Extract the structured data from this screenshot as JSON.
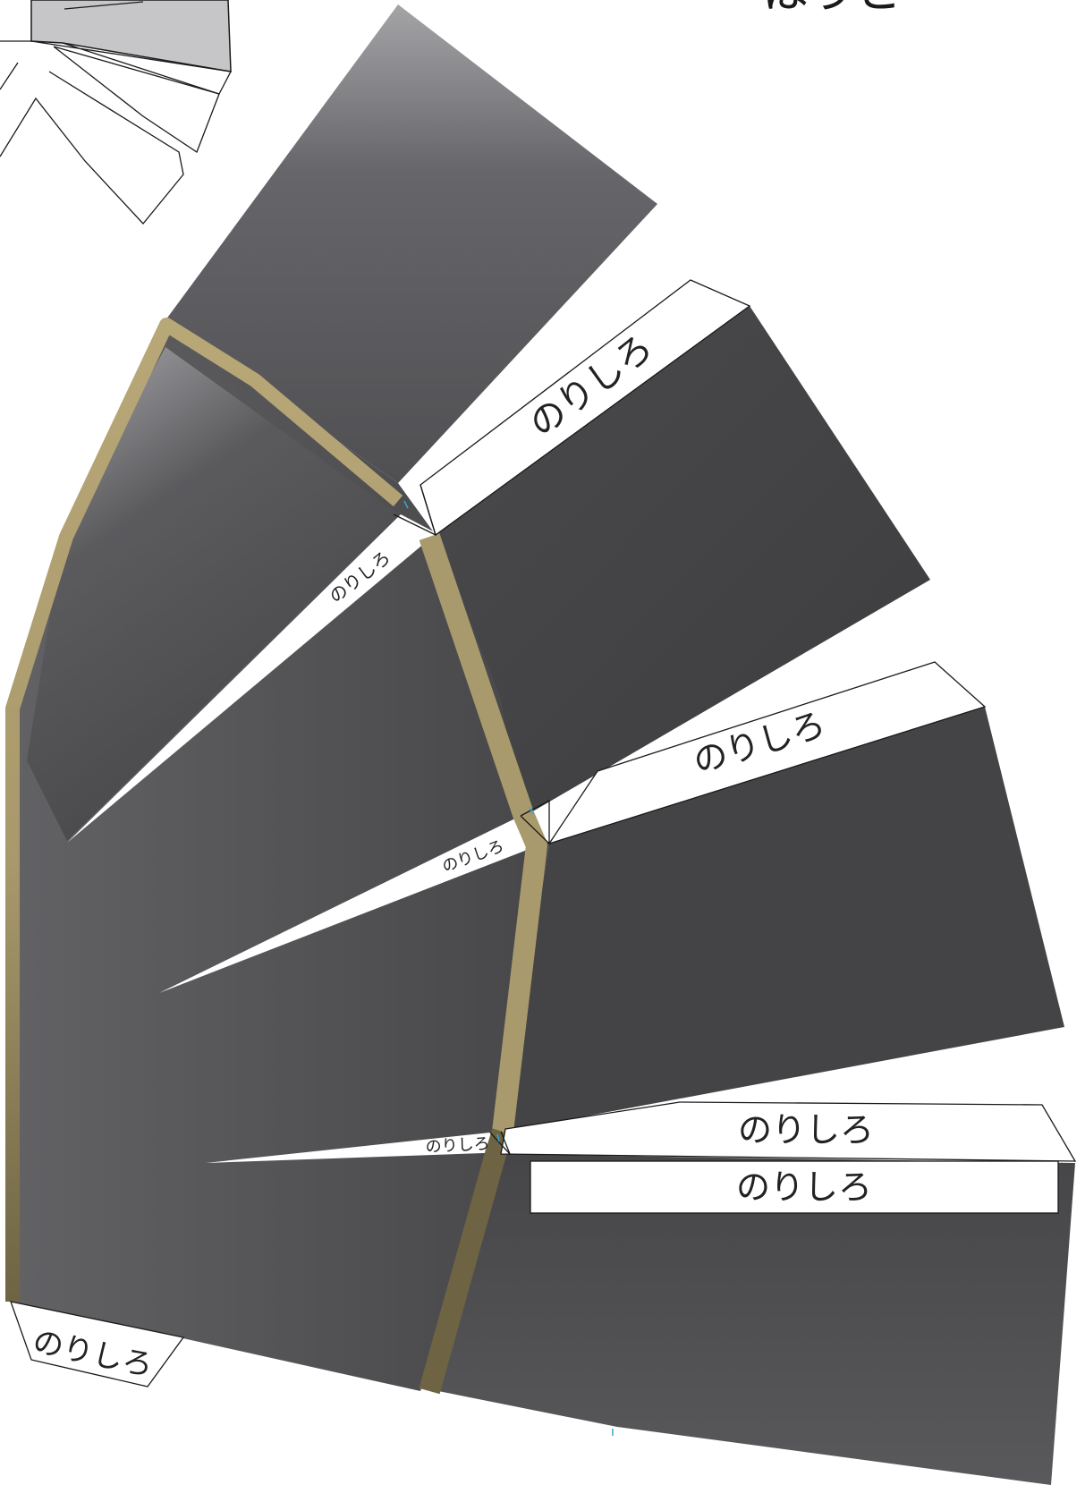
{
  "title_fragment": "はうと",
  "glue_label": "のりしろ",
  "colors": {
    "panel_dark": "#3f3f41",
    "panel_light": "#a3a3a6",
    "trim_light": "#b8a777",
    "trim_dark": "#6e6443",
    "thumbnail_fill": "#c6c6c8",
    "guide_mark": "#2fa8e0"
  }
}
